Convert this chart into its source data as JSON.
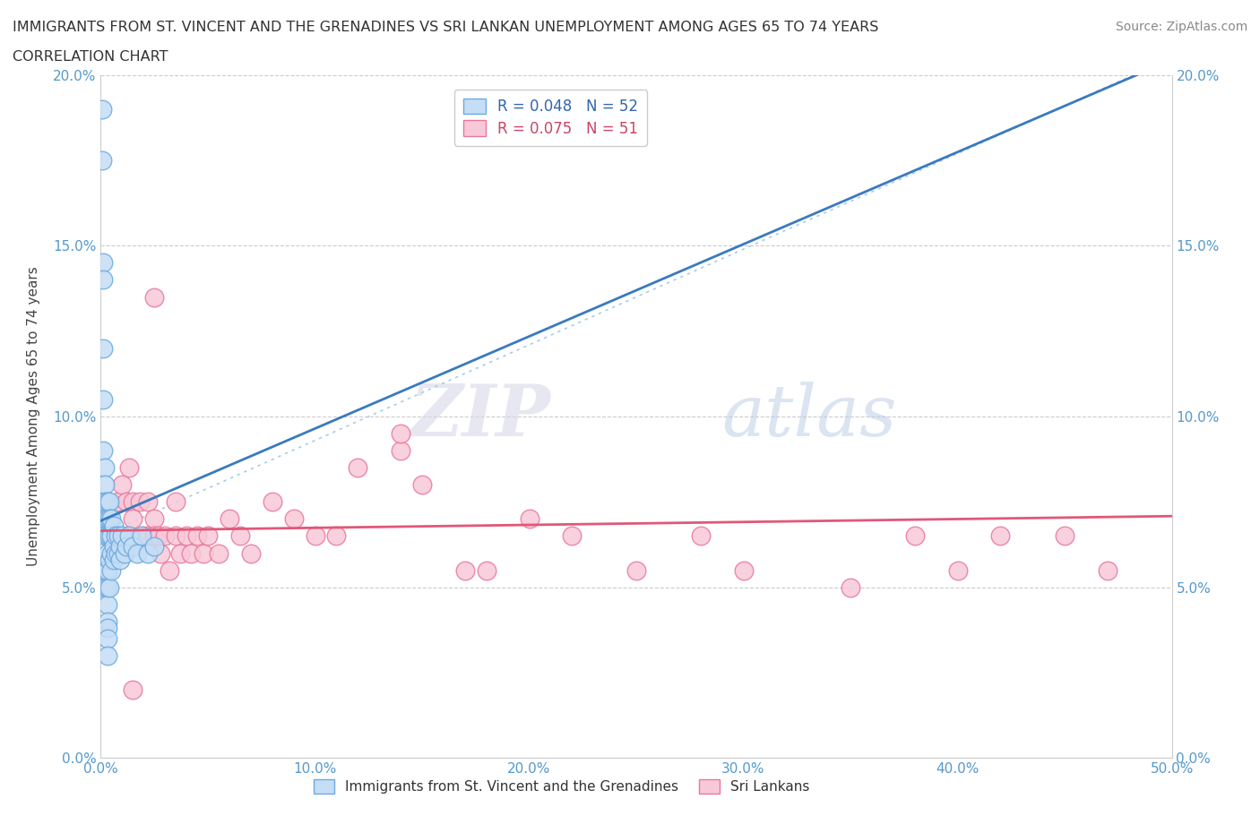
{
  "title_line1": "IMMIGRANTS FROM ST. VINCENT AND THE GRENADINES VS SRI LANKAN UNEMPLOYMENT AMONG AGES 65 TO 74 YEARS",
  "title_line2": "CORRELATION CHART",
  "source": "Source: ZipAtlas.com",
  "ylabel": "Unemployment Among Ages 65 to 74 years",
  "xmin": 0.0,
  "xmax": 0.5,
  "ymin": 0.0,
  "ymax": 0.2,
  "xticks": [
    0.0,
    0.1,
    0.2,
    0.3,
    0.4,
    0.5
  ],
  "yticks": [
    0.0,
    0.05,
    0.1,
    0.15,
    0.2
  ],
  "xtick_labels": [
    "0.0%",
    "10.0%",
    "20.0%",
    "30.0%",
    "40.0%",
    "50.0%"
  ],
  "ytick_labels": [
    "0.0%",
    "5.0%",
    "10.0%",
    "15.0%",
    "20.0%"
  ],
  "blue_fill": "#c5ddf5",
  "blue_edge": "#6aaae0",
  "pink_fill": "#f8c8d8",
  "pink_edge": "#e8789a",
  "blue_line_color": "#3a7abf",
  "pink_line_color": "#e05878",
  "dash_color": "#a8cce8",
  "legend_label1": "Immigrants from St. Vincent and the Grenadines",
  "legend_label2": "Sri Lankans",
  "watermark_zip": "ZIP",
  "watermark_atlas": "atlas",
  "blue_x": [
    0.0005,
    0.0005,
    0.001,
    0.001,
    0.001,
    0.001,
    0.001,
    0.002,
    0.002,
    0.002,
    0.002,
    0.002,
    0.002,
    0.002,
    0.003,
    0.003,
    0.003,
    0.003,
    0.003,
    0.003,
    0.003,
    0.003,
    0.003,
    0.003,
    0.003,
    0.004,
    0.004,
    0.004,
    0.004,
    0.004,
    0.005,
    0.005,
    0.005,
    0.005,
    0.006,
    0.006,
    0.006,
    0.007,
    0.007,
    0.008,
    0.008,
    0.009,
    0.009,
    0.01,
    0.011,
    0.012,
    0.013,
    0.015,
    0.017,
    0.019,
    0.022,
    0.025
  ],
  "blue_y": [
    0.19,
    0.175,
    0.145,
    0.14,
    0.12,
    0.105,
    0.09,
    0.085,
    0.08,
    0.075,
    0.07,
    0.065,
    0.055,
    0.05,
    0.075,
    0.07,
    0.065,
    0.06,
    0.055,
    0.05,
    0.045,
    0.04,
    0.038,
    0.035,
    0.03,
    0.075,
    0.07,
    0.065,
    0.058,
    0.05,
    0.07,
    0.065,
    0.06,
    0.055,
    0.068,
    0.062,
    0.058,
    0.065,
    0.06,
    0.065,
    0.06,
    0.062,
    0.058,
    0.065,
    0.06,
    0.062,
    0.065,
    0.062,
    0.06,
    0.065,
    0.06,
    0.062
  ],
  "pink_x": [
    0.008,
    0.01,
    0.012,
    0.013,
    0.015,
    0.015,
    0.018,
    0.02,
    0.022,
    0.022,
    0.025,
    0.025,
    0.027,
    0.028,
    0.03,
    0.032,
    0.035,
    0.035,
    0.037,
    0.04,
    0.042,
    0.045,
    0.048,
    0.05,
    0.055,
    0.06,
    0.065,
    0.07,
    0.08,
    0.09,
    0.1,
    0.11,
    0.12,
    0.14,
    0.15,
    0.17,
    0.18,
    0.2,
    0.22,
    0.25,
    0.28,
    0.3,
    0.35,
    0.38,
    0.4,
    0.42,
    0.45,
    0.47,
    0.015,
    0.025,
    0.14
  ],
  "pink_y": [
    0.075,
    0.08,
    0.075,
    0.085,
    0.075,
    0.07,
    0.075,
    0.065,
    0.075,
    0.065,
    0.07,
    0.065,
    0.065,
    0.06,
    0.065,
    0.055,
    0.075,
    0.065,
    0.06,
    0.065,
    0.06,
    0.065,
    0.06,
    0.065,
    0.06,
    0.07,
    0.065,
    0.06,
    0.075,
    0.07,
    0.065,
    0.065,
    0.085,
    0.09,
    0.08,
    0.055,
    0.055,
    0.07,
    0.065,
    0.055,
    0.065,
    0.055,
    0.05,
    0.065,
    0.055,
    0.065,
    0.065,
    0.055,
    0.02,
    0.135,
    0.095
  ]
}
